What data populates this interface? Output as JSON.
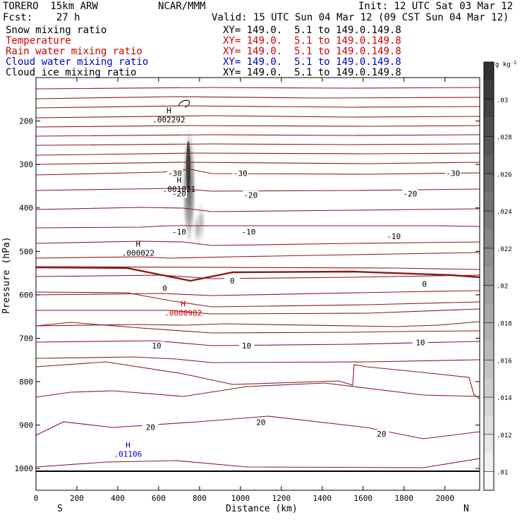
{
  "header": {
    "model": "TORERO  15km ARW",
    "center": "NCAR/MMM",
    "init": "Init: 12 UTC Sat 03 Mar 12",
    "fcst": "Fcst:    27 h",
    "valid": "Valid: 15 UTC Sun 04 Mar 12 (09 CST Sun 04 Mar 12)"
  },
  "fields": [
    {
      "name": "Snow mixing ratio",
      "xy": "XY= 149.0.  5.1 to 149.0.149.8",
      "color": "#000000"
    },
    {
      "name": "Temperature",
      "xy": "XY= 149.0.  5.1 to 149.0.149.8",
      "color": "#cc0000"
    },
    {
      "name": "Rain water mixing ratio",
      "xy": "XY= 149.0.  5.1 to 149.0.149.8",
      "color": "#cc0000"
    },
    {
      "name": "Cloud water mixing ratio",
      "xy": "XY= 149.0.  5.1 to 149.0.149.8",
      "color": "#0000cc"
    },
    {
      "name": "Cloud ice mixing ratio",
      "xy": "XY= 149.0.  5.1 to 149.0.149.8",
      "color": "#000000"
    }
  ],
  "colors": {
    "temperature": "#8b1a1a",
    "rain_label": "#cc0000",
    "cloud_water_label": "#0000cc",
    "text": "#000000"
  },
  "chart_data": {
    "type": "contour",
    "xlabel": "Distance (km)",
    "ylabel": "Pressure (hPa)",
    "xlim": [
      0,
      2170
    ],
    "ylim": [
      1050,
      100
    ],
    "x_ticks": [
      0,
      200,
      400,
      600,
      800,
      1000,
      1200,
      1400,
      1600,
      1800,
      2000
    ],
    "y_ticks": [
      200,
      300,
      400,
      500,
      600,
      700,
      800,
      900,
      1000
    ],
    "x_end_labels": {
      "left": "S",
      "right": "N"
    },
    "colorbar": {
      "unit": "g kg",
      "unit_exp": "-1",
      "range": [
        0.009,
        0.032
      ],
      "tick_labels": [
        ".01",
        ".012",
        ".014",
        ".016",
        ".018",
        ".02",
        ".022",
        ".024",
        ".026",
        ".028",
        ".03"
      ],
      "tick_values": [
        0.01,
        0.012,
        0.014,
        0.016,
        0.018,
        0.02,
        0.022,
        0.024,
        0.026,
        0.028,
        0.03
      ]
    },
    "isotherm_labels": [
      {
        "text": "-30",
        "x": 680,
        "p": 320
      },
      {
        "text": "-30",
        "x": 1000,
        "p": 320
      },
      {
        "text": "-30",
        "x": 2040,
        "p": 320
      },
      {
        "text": "-20",
        "x": 700,
        "p": 367
      },
      {
        "text": "-20",
        "x": 1050,
        "p": 370
      },
      {
        "text": "-20",
        "x": 1830,
        "p": 367
      },
      {
        "text": "-10",
        "x": 700,
        "p": 455
      },
      {
        "text": "-10",
        "x": 1040,
        "p": 455
      },
      {
        "text": "-10",
        "x": 1750,
        "p": 465
      },
      {
        "text": "0",
        "x": 630,
        "p": 585
      },
      {
        "text": "0",
        "x": 960,
        "p": 568
      },
      {
        "text": "0",
        "x": 1900,
        "p": 575
      },
      {
        "text": "10",
        "x": 590,
        "p": 717
      },
      {
        "text": "10",
        "x": 1030,
        "p": 717
      },
      {
        "text": "10",
        "x": 1880,
        "p": 710
      },
      {
        "text": "20",
        "x": 560,
        "p": 905
      },
      {
        "text": "20",
        "x": 1100,
        "p": 893
      },
      {
        "text": "20",
        "x": 1690,
        "p": 920
      }
    ],
    "extrema": [
      {
        "letter": "H",
        "value": ".002292",
        "x": 650,
        "p": 195,
        "field": "Snow mixing ratio"
      },
      {
        "letter": "H",
        "value": ".001821",
        "x": 700,
        "p": 355,
        "field": "Cloud ice mixing ratio"
      },
      {
        "letter": "H",
        "value": ".000022",
        "x": 500,
        "p": 502,
        "field": "Cloud ice mixing ratio"
      },
      {
        "letter": "H",
        "value": ".0000982",
        "x": 720,
        "p": 640,
        "field": "Rain water mixing ratio"
      },
      {
        "letter": "H",
        "value": ".01106",
        "x": 450,
        "p": 965,
        "field": "Cloud water mixing ratio"
      }
    ]
  }
}
